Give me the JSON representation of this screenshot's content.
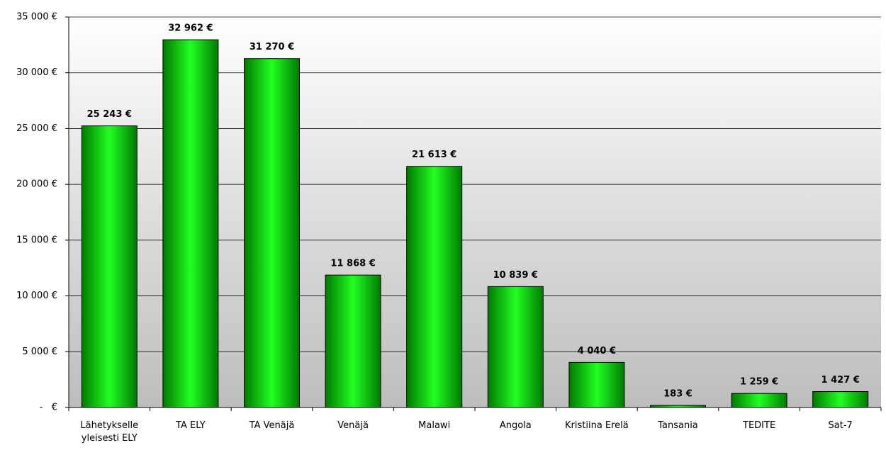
{
  "chart_data": {
    "type": "bar",
    "categories": [
      "Lähetykselle yleisesti ELY",
      "TA ELY",
      "TA Venäjä",
      "Venäjä",
      "Malawi",
      "Angola",
      "Kristiina Erelä",
      "Tansania",
      "TEDITE",
      "Sat-7"
    ],
    "values": [
      25243,
      32962,
      31270,
      11868,
      21613,
      10839,
      4040,
      183,
      1259,
      1427
    ],
    "value_labels": [
      "25 243 €",
      "32 962 €",
      "31 270 €",
      "11 868 €",
      "21 613 €",
      "10 839 €",
      "4 040 €",
      "183 €",
      "1 259 €",
      "1 427 €"
    ],
    "color": "#00e000",
    "ylim": [
      0,
      35000
    ],
    "yticks": [
      {
        "value": 0,
        "label": "-   €"
      },
      {
        "value": 5000,
        "label": "5 000 €"
      },
      {
        "value": 10000,
        "label": "10 000 €"
      },
      {
        "value": 15000,
        "label": "15 000 €"
      },
      {
        "value": 20000,
        "label": "20 000 €"
      },
      {
        "value": 25000,
        "label": "25 000 €"
      },
      {
        "value": 30000,
        "label": "30 000 €"
      },
      {
        "value": 35000,
        "label": "35 000 €"
      }
    ],
    "grid": true
  }
}
